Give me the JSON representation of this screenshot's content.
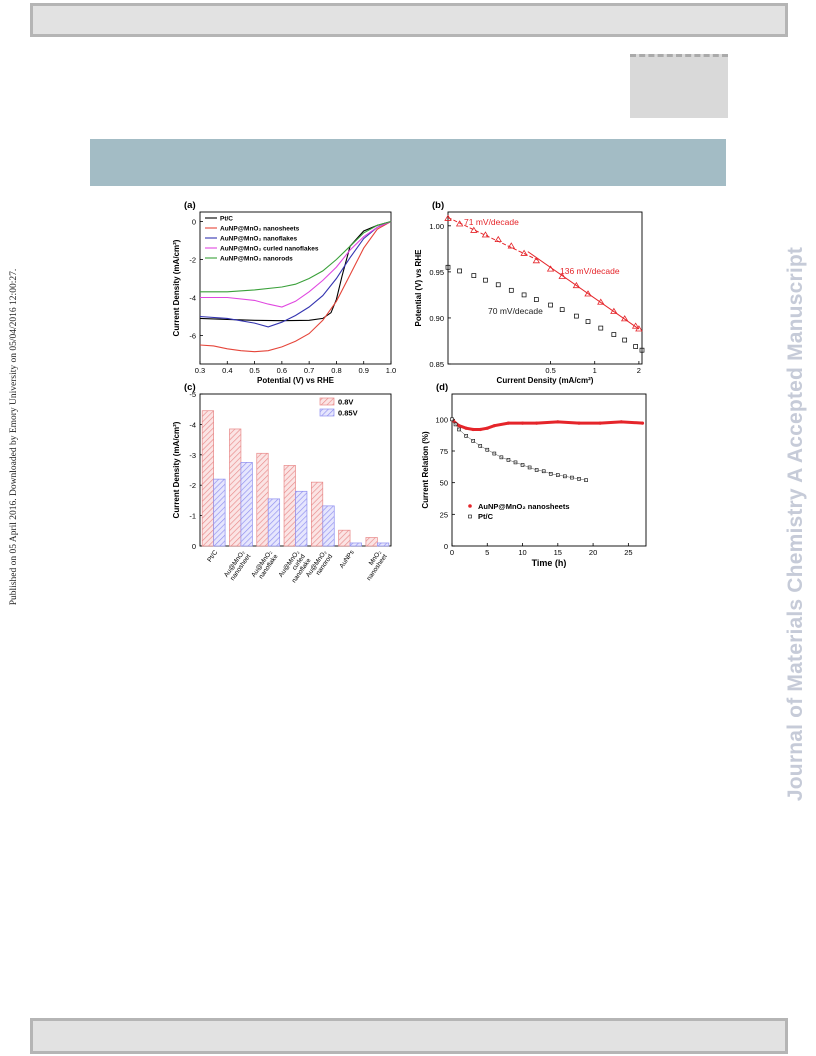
{
  "side_note": "Published on 05 April 2016. Downloaded by Emory University on 05/04/2016 12:00:27.",
  "watermark": "Journal of Materials Chemistry A Accepted Manuscript",
  "colors": {
    "pt_c": "#000000",
    "nanosheets": "#e5453a",
    "nanoflakes": "#3434b0",
    "curled": "#e048e0",
    "nanorods": "#3aa03a",
    "bar_08": "#e88a8a",
    "bar_085": "#8f8ff0",
    "red": "#e5252a"
  },
  "chart_data": [
    {
      "panel": "(a)",
      "type": "line",
      "xlabel": "Potential (V) vs RHE",
      "ylabel": "Current Density (mA/cm²)",
      "xlim": [
        0.3,
        1.0
      ],
      "ylim": [
        -7.5,
        0.5
      ],
      "xticks": [
        "0.3",
        "0.4",
        "0.5",
        "0.6",
        "0.7",
        "0.8",
        "0.9",
        "1.0"
      ],
      "yticks": [
        "0",
        "-2",
        "-4",
        "-6"
      ],
      "legend": "top-left",
      "series": [
        {
          "name": "Pt/C",
          "color": "#000000",
          "x": [
            0.3,
            0.4,
            0.5,
            0.6,
            0.7,
            0.75,
            0.78,
            0.8,
            0.82,
            0.85,
            0.9,
            0.95,
            1.0
          ],
          "y": [
            -5.1,
            -5.15,
            -5.2,
            -5.22,
            -5.2,
            -5.1,
            -4.8,
            -4.1,
            -2.9,
            -1.3,
            -0.5,
            -0.2,
            0
          ]
        },
        {
          "name": "AuNP@MnO₂ nanosheets",
          "color": "#e5453a",
          "x": [
            0.3,
            0.35,
            0.4,
            0.45,
            0.5,
            0.55,
            0.6,
            0.65,
            0.7,
            0.75,
            0.8,
            0.85,
            0.9,
            0.95,
            1.0
          ],
          "y": [
            -6.5,
            -6.55,
            -6.7,
            -6.8,
            -6.85,
            -6.8,
            -6.6,
            -6.3,
            -5.9,
            -5.2,
            -4.2,
            -2.8,
            -1.4,
            -0.4,
            0
          ]
        },
        {
          "name": "AuNP@MnO₂ nanoflakes",
          "color": "#3434b0",
          "x": [
            0.3,
            0.4,
            0.5,
            0.55,
            0.6,
            0.65,
            0.7,
            0.75,
            0.8,
            0.85,
            0.9,
            0.95,
            1.0
          ],
          "y": [
            -5.0,
            -5.1,
            -5.35,
            -5.55,
            -5.3,
            -4.95,
            -4.5,
            -3.9,
            -3.0,
            -1.9,
            -0.9,
            -0.3,
            0
          ]
        },
        {
          "name": "AuNP@MnO₂ curled nanoflakes",
          "color": "#e048e0",
          "x": [
            0.3,
            0.4,
            0.5,
            0.55,
            0.6,
            0.65,
            0.7,
            0.75,
            0.8,
            0.85,
            0.9,
            0.95,
            1.0
          ],
          "y": [
            -4.0,
            -4.0,
            -4.15,
            -4.35,
            -4.5,
            -4.2,
            -3.7,
            -3.1,
            -2.4,
            -1.5,
            -0.8,
            -0.3,
            0
          ]
        },
        {
          "name": "AuNP@MnO₂ nanorods",
          "color": "#3aa03a",
          "x": [
            0.3,
            0.4,
            0.5,
            0.6,
            0.65,
            0.7,
            0.75,
            0.8,
            0.85,
            0.9,
            0.95,
            1.0
          ],
          "y": [
            -3.7,
            -3.7,
            -3.6,
            -3.45,
            -3.3,
            -3.0,
            -2.6,
            -2.0,
            -1.3,
            -0.6,
            -0.2,
            0
          ]
        }
      ]
    },
    {
      "panel": "(b)",
      "type": "scatter",
      "xlabel": "Current Density (mA/cm²)",
      "ylabel": "Potential (V) vs RHE",
      "xscale": "log",
      "xlim": [
        0.1,
        2.1
      ],
      "ylim": [
        0.85,
        1.015
      ],
      "xticks": [
        "0.5",
        "1",
        "2"
      ],
      "yticks": [
        "0.85",
        "0.90",
        "0.95",
        "1.00"
      ],
      "annotations": [
        "71 mV/decade",
        "136 mV/decade",
        "70 mV/decade"
      ],
      "series": [
        {
          "name": "AuNP@MnO₂ nanosheets",
          "marker": "triangle",
          "color": "#e5252a",
          "x": [
            0.1,
            0.12,
            0.15,
            0.18,
            0.22,
            0.27,
            0.33,
            0.4,
            0.5,
            0.6,
            0.75,
            0.9,
            1.1,
            1.35,
            1.6,
            1.9,
            2.0
          ],
          "y": [
            1.008,
            1.002,
            0.995,
            0.99,
            0.985,
            0.978,
            0.97,
            0.962,
            0.953,
            0.945,
            0.935,
            0.926,
            0.917,
            0.907,
            0.899,
            0.891,
            0.888
          ]
        },
        {
          "name": "Pt/C",
          "marker": "square",
          "color": "#000000",
          "x": [
            0.1,
            0.12,
            0.15,
            0.18,
            0.22,
            0.27,
            0.33,
            0.4,
            0.5,
            0.6,
            0.75,
            0.9,
            1.1,
            1.35,
            1.6,
            1.9,
            2.1
          ],
          "y": [
            0.955,
            0.951,
            0.946,
            0.941,
            0.936,
            0.93,
            0.925,
            0.92,
            0.914,
            0.909,
            0.902,
            0.896,
            0.889,
            0.882,
            0.876,
            0.869,
            0.865
          ]
        }
      ]
    },
    {
      "panel": "(c)",
      "type": "bar",
      "ylabel": "Current Density (mA/cm²)",
      "ylim": [
        0,
        -5
      ],
      "yticks": [
        "0",
        "-1",
        "-2",
        "-3",
        "-4",
        "-5"
      ],
      "categories": [
        "Pt/C",
        "Au@MnO₂ nanosheet",
        "Au@MnO₂ nanoflake",
        "Au@MnO₂ curled nanoflake",
        "Au@MnO₂ nanorod",
        "AuNPs",
        "MnO₂ nanosheet"
      ],
      "series": [
        {
          "name": "0.8V",
          "color": "#e88a8a",
          "values": [
            -4.45,
            -3.85,
            -3.05,
            -2.65,
            -2.1,
            -0.52,
            -0.28
          ]
        },
        {
          "name": "0.85V",
          "color": "#8f8ff0",
          "values": [
            -2.2,
            -2.75,
            -1.55,
            -1.8,
            -1.32,
            -0.1,
            -0.1
          ]
        }
      ]
    },
    {
      "panel": "(d)",
      "type": "scatter",
      "xlabel": "Time (h)",
      "ylabel": "Current Relation (%)",
      "xlim": [
        0,
        27.5
      ],
      "ylim": [
        0,
        120
      ],
      "xticks": [
        "0",
        "5",
        "10",
        "15",
        "20",
        "25"
      ],
      "yticks": [
        "0",
        "25",
        "50",
        "75",
        "100"
      ],
      "legend": "bottom-right",
      "series": [
        {
          "name": "AuNP@MnO₂ nanosheets",
          "marker": "filled",
          "color": "#e5252a",
          "x": [
            0,
            0.5,
            1,
            2,
            3,
            4,
            5,
            6,
            8,
            10,
            12,
            15,
            18,
            21,
            24,
            27
          ],
          "y": [
            100,
            97,
            95,
            93,
            92,
            92,
            93,
            95,
            97,
            97,
            97,
            98,
            97,
            97,
            98,
            97
          ]
        },
        {
          "name": "Pt/C",
          "marker": "open-square",
          "color": "#000000",
          "x": [
            0,
            0.5,
            1,
            2,
            3,
            4,
            5,
            6,
            7,
            8,
            9,
            10,
            11,
            12,
            13,
            14,
            15,
            16,
            17,
            18,
            19
          ],
          "y": [
            100,
            96,
            92,
            87,
            83,
            79,
            76,
            73,
            70,
            68,
            66,
            64,
            62,
            60,
            59,
            57,
            56,
            55,
            54,
            53,
            52
          ]
        }
      ]
    }
  ]
}
